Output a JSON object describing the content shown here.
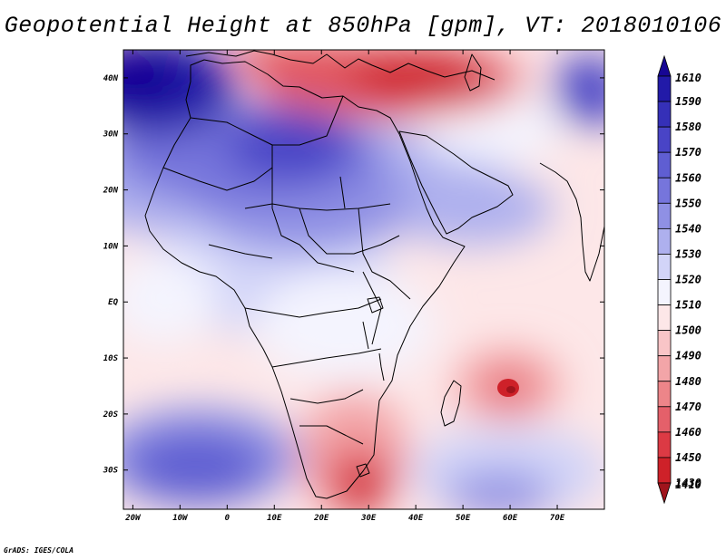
{
  "title": "Geopotential Height at 850hPa [gpm], VT: 2018010106",
  "credit": "GrADS: IGES/COLA",
  "map": {
    "variable": "Geopotential Height at 850hPa",
    "units": "gpm",
    "valid_time": "2018010106",
    "lon_range": [
      -22,
      80
    ],
    "lat_range": [
      -37,
      45
    ],
    "lon_ticks": [
      {
        "value": -20,
        "label": "20W"
      },
      {
        "value": -10,
        "label": "10W"
      },
      {
        "value": 0,
        "label": "0"
      },
      {
        "value": 10,
        "label": "10E"
      },
      {
        "value": 20,
        "label": "20E"
      },
      {
        "value": 30,
        "label": "30E"
      },
      {
        "value": 40,
        "label": "40E"
      },
      {
        "value": 50,
        "label": "50E"
      },
      {
        "value": 60,
        "label": "60E"
      },
      {
        "value": 70,
        "label": "70E"
      }
    ],
    "lat_ticks": [
      {
        "value": 40,
        "label": "40N"
      },
      {
        "value": 30,
        "label": "30N"
      },
      {
        "value": 20,
        "label": "20N"
      },
      {
        "value": 10,
        "label": "10N"
      },
      {
        "value": 0,
        "label": "EQ"
      },
      {
        "value": -10,
        "label": "10S"
      },
      {
        "value": -20,
        "label": "20S"
      },
      {
        "value": -30,
        "label": "30S"
      }
    ]
  },
  "colorbar": {
    "levels": [
      "1610",
      "1590",
      "1580",
      "1570",
      "1560",
      "1550",
      "1540",
      "1530",
      "1520",
      "1510",
      "1500",
      "1490",
      "1480",
      "1470",
      "1460",
      "1450",
      "1430",
      "1410"
    ],
    "colors": [
      "#170694",
      "#221aa8",
      "#3530b8",
      "#4944c6",
      "#5f5ed2",
      "#7675dc",
      "#8f90e4",
      "#aeb0ee",
      "#d2d4f8",
      "#f4f4fe",
      "#fde7e8",
      "#f9c5c7",
      "#f3a5a8",
      "#ed8589",
      "#e4606a",
      "#dc3a44",
      "#ce2129",
      "#a0141c"
    ]
  },
  "field_features": [
    {
      "lon": -18,
      "lat": 38,
      "value": 1600
    },
    {
      "lon": 10,
      "lat": 28,
      "value": 1570
    },
    {
      "lon": 60,
      "lat": -16,
      "value": 1440
    },
    {
      "lon": 30,
      "lat": -30,
      "value": 1450
    },
    {
      "lon": 38,
      "lat": 40,
      "value": 1440
    },
    {
      "lon": -10,
      "lat": -30,
      "value": 1555
    },
    {
      "lon": 55,
      "lat": -35,
      "value": 1540
    },
    {
      "lon": 76,
      "lat": 36,
      "value": 1580
    }
  ]
}
